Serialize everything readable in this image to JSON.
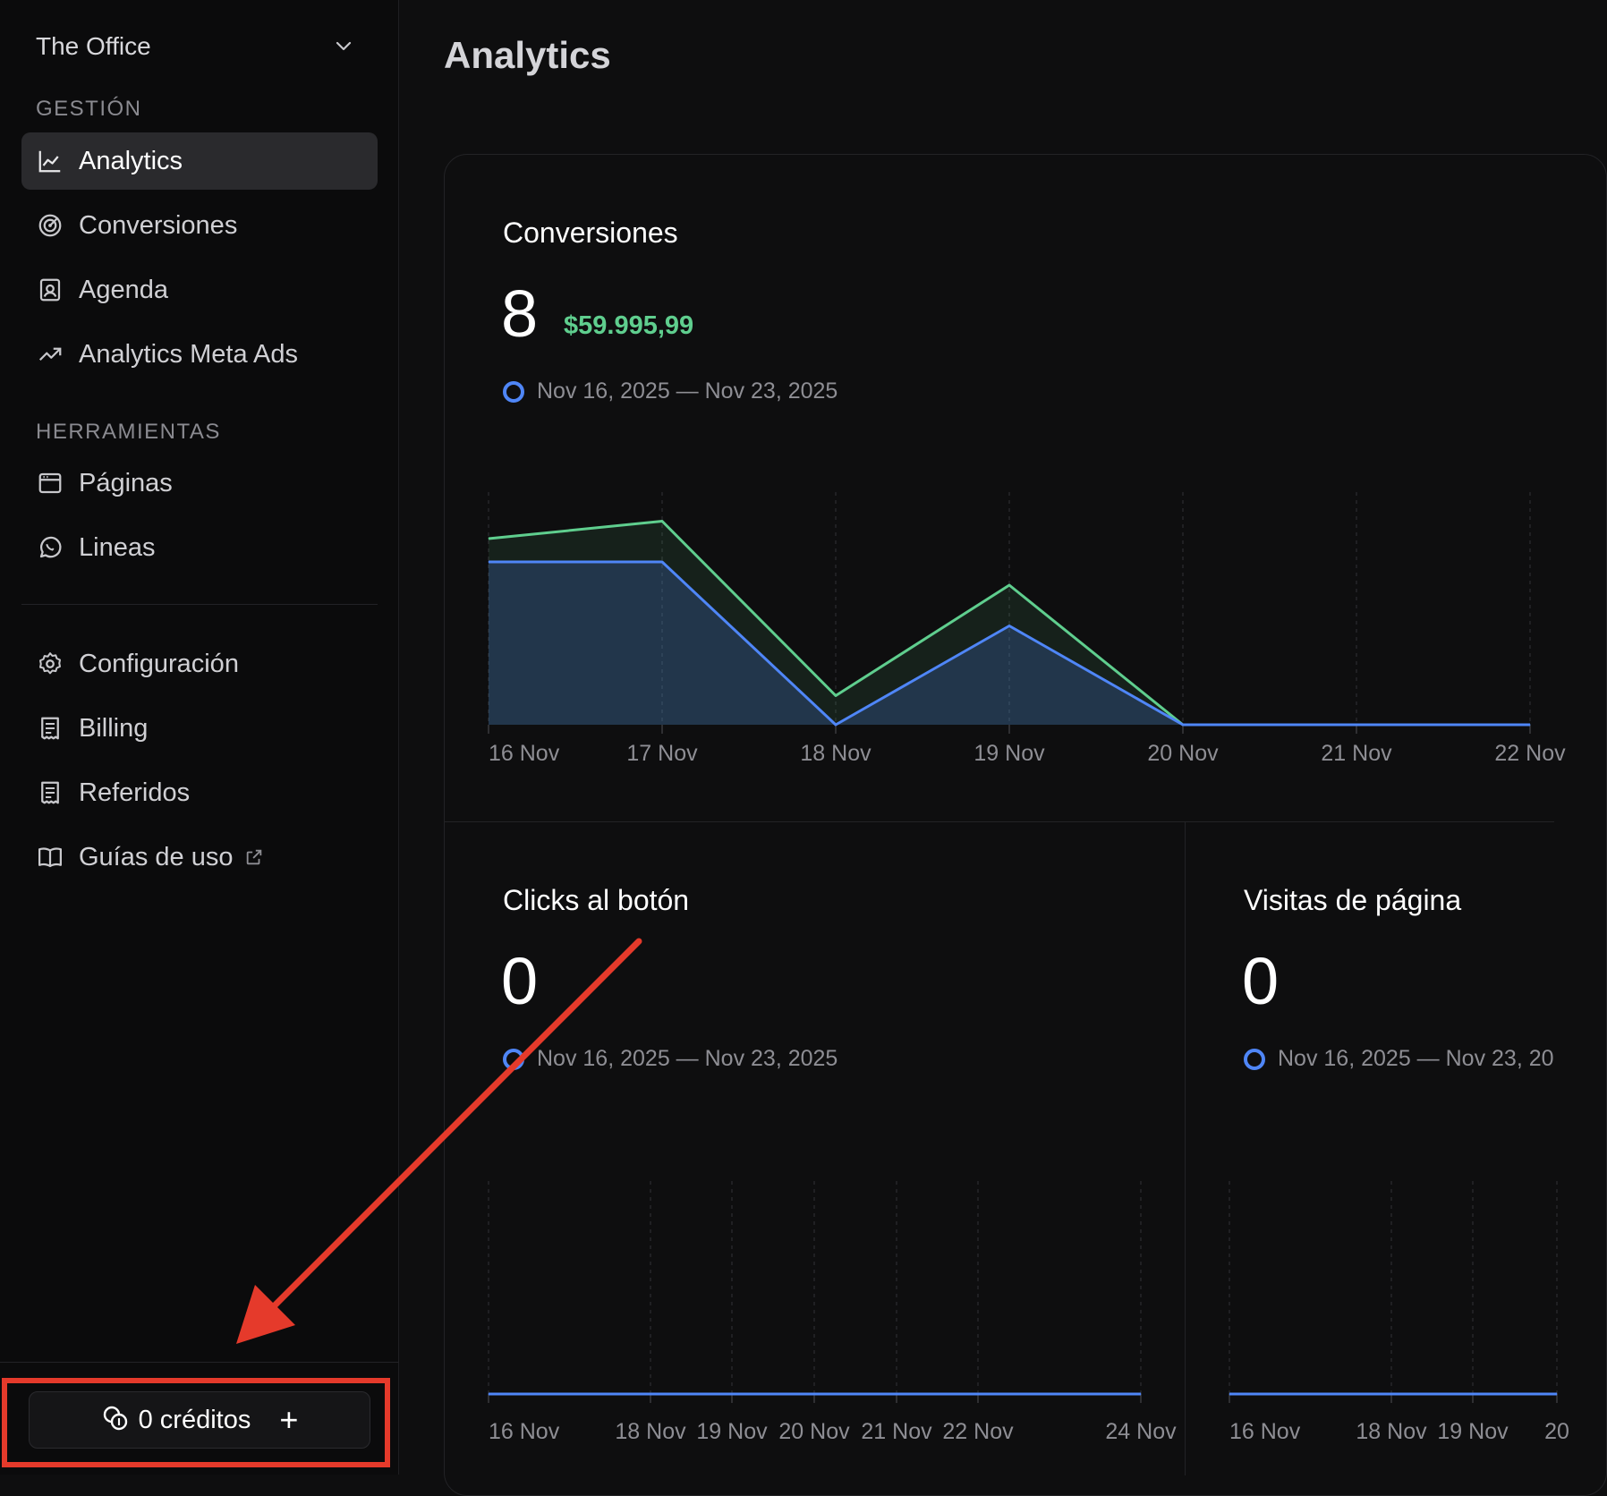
{
  "sidebar": {
    "org_name": "The Office",
    "sections": [
      {
        "label": "GESTIÓN"
      },
      {
        "label": "HERRAMIENTAS"
      }
    ],
    "items": [
      {
        "label": "Analytics",
        "icon": "line-chart-icon",
        "active": true
      },
      {
        "label": "Conversiones",
        "icon": "target-icon"
      },
      {
        "label": "Agenda",
        "icon": "contact-book-icon"
      },
      {
        "label": "Analytics Meta Ads",
        "icon": "trending-up-icon"
      },
      {
        "label": "Páginas",
        "icon": "browser-window-icon"
      },
      {
        "label": "Lineas",
        "icon": "whatsapp-icon"
      },
      {
        "label": "Configuración",
        "icon": "gear-icon"
      },
      {
        "label": "Billing",
        "icon": "receipt-icon"
      },
      {
        "label": "Referidos",
        "icon": "receipt-icon"
      },
      {
        "label": "Guías de uso",
        "icon": "book-icon",
        "external": true
      }
    ],
    "credits": {
      "label": "0 créditos",
      "icon": "coins-icon",
      "add_icon": "plus-icon"
    }
  },
  "main": {
    "title": "Analytics",
    "cards": [
      {
        "title": "Conversiones",
        "value": "8",
        "money": "$59.995,99",
        "range": "Nov 16, 2025 — Nov 23, 2025"
      },
      {
        "title": "Clicks al botón",
        "value": "0",
        "range": "Nov 16, 2025 — Nov 23, 2025"
      },
      {
        "title": "Visitas de página",
        "value": "0",
        "range": "Nov 16, 2025 — Nov 23, 20"
      }
    ]
  },
  "colors": {
    "accent_green": "#5fce8e",
    "accent_blue": "#4f86f7",
    "annotation_red": "#e53a2b"
  },
  "chart_data": [
    {
      "type": "area",
      "title": "Conversiones",
      "categories": [
        "16 Nov",
        "17 Nov",
        "18 Nov",
        "19 Nov",
        "20 Nov",
        "21 Nov",
        "22 Nov"
      ],
      "series": [
        {
          "values": [
            6.4,
            7,
            1,
            4.8,
            0,
            0,
            0
          ],
          "color": "#5fce8e"
        },
        {
          "values": [
            5.6,
            5.6,
            0,
            3.4,
            0,
            0,
            0
          ],
          "color": "#4f86f7"
        }
      ],
      "ylim": [
        0,
        8
      ],
      "grid": true
    },
    {
      "type": "line",
      "title": "Clicks al botón",
      "categories": [
        "16 Nov",
        "18 Nov",
        "19 Nov",
        "20 Nov",
        "21 Nov",
        "22 Nov",
        "24 Nov"
      ],
      "series": [
        {
          "values": [
            0,
            0,
            0,
            0,
            0,
            0,
            0
          ],
          "color": "#4f86f7"
        }
      ],
      "ylim": [
        0,
        1
      ],
      "grid": true
    },
    {
      "type": "line",
      "title": "Visitas de página",
      "categories": [
        "16 Nov",
        "18 Nov",
        "19 Nov",
        "20"
      ],
      "series": [
        {
          "values": [
            0,
            0,
            0,
            0
          ],
          "color": "#4f86f7"
        }
      ],
      "ylim": [
        0,
        1
      ],
      "grid": true
    }
  ]
}
